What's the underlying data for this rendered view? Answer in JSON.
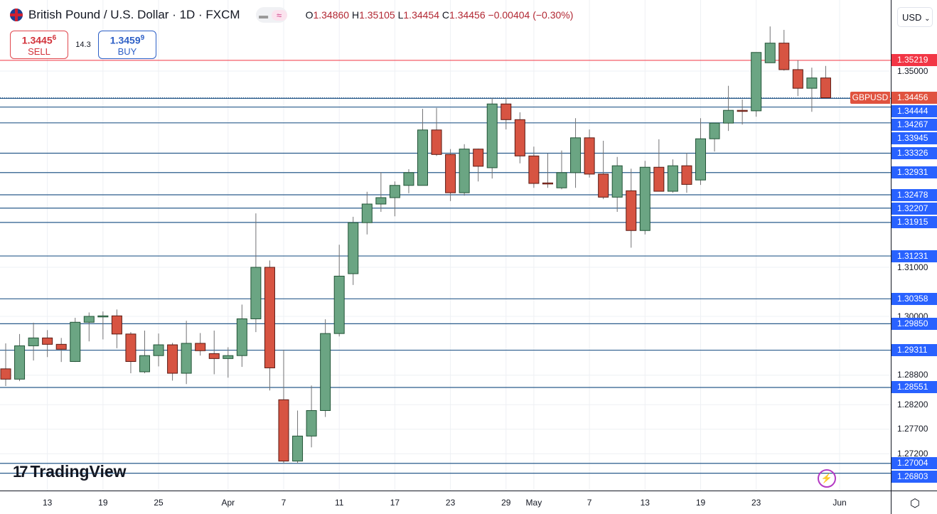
{
  "header": {
    "title": "British Pound / U.S. Dollar · 1D · FXCM",
    "ohlc": {
      "o_label": "O",
      "o": "1.34860",
      "h_label": "H",
      "h": "1.35105",
      "l_label": "L",
      "l": "1.34454",
      "c_label": "C",
      "c": "1.34456",
      "change": "−0.00404 (−0.30%)"
    }
  },
  "trade": {
    "sell_price": "1.3445",
    "sell_pip": "6",
    "sell_label": "SELL",
    "spread": "14.3",
    "buy_price": "1.3459",
    "buy_pip": "9",
    "buy_label": "BUY"
  },
  "currency": "USD",
  "symbol_tag": "GBPUSD",
  "logo_text": "TradingView",
  "icons": {
    "flag": "uk-us-flag-icon",
    "settings": "settings-icon",
    "lightning": "lightning-icon"
  },
  "colors": {
    "up": "#6ba583",
    "down": "#d75442",
    "level_line": "#2a5c8c",
    "resistance_line": "#f23645",
    "level_label": "#2962ff"
  },
  "chart_data": {
    "type": "candlestick",
    "symbol": "GBPUSD",
    "interval": "1D",
    "ylim": [
      1.2655,
      1.3645
    ],
    "y_tick_labels": [
      "1.35000",
      "1.31000",
      "1.30000",
      "1.28800",
      "1.28200",
      "1.27700",
      "1.27200"
    ],
    "x_tick_labels": [
      {
        "label": "13",
        "date": "Mar 13"
      },
      {
        "label": "19",
        "date": "Mar 19"
      },
      {
        "label": "25",
        "date": "Mar 25"
      },
      {
        "label": "Apr",
        "date": "Apr 1"
      },
      {
        "label": "7",
        "date": "Apr 7"
      },
      {
        "label": "11",
        "date": "Apr 11"
      },
      {
        "label": "17",
        "date": "Apr 17"
      },
      {
        "label": "23",
        "date": "Apr 23"
      },
      {
        "label": "29",
        "date": "Apr 29"
      },
      {
        "label": "May",
        "date": "May 1"
      },
      {
        "label": "7",
        "date": "May 7"
      },
      {
        "label": "13",
        "date": "May 13"
      },
      {
        "label": "19",
        "date": "May 19"
      },
      {
        "label": "23",
        "date": "May 23"
      },
      {
        "label": "Jun",
        "date": "Jun 2"
      }
    ],
    "current_price": "1.34456",
    "resistance_level": "1.35219",
    "levels": [
      "1.34444",
      "1.34267",
      "1.33945",
      "1.33326",
      "1.32931",
      "1.32478",
      "1.32207",
      "1.31915",
      "1.31231",
      "1.30358",
      "1.29850",
      "1.29311",
      "1.28551",
      "1.27004",
      "1.26803"
    ],
    "columns": [
      "date",
      "open",
      "high",
      "low",
      "close"
    ],
    "candles": [
      [
        "Mar 10",
        1.2893,
        1.2945,
        1.2858,
        1.2872
      ],
      [
        "Mar 11",
        1.2872,
        1.2964,
        1.2868,
        1.294
      ],
      [
        "Mar 12",
        1.294,
        1.2987,
        1.291,
        1.2956
      ],
      [
        "Mar 13",
        1.2956,
        1.2972,
        1.2917,
        1.2943
      ],
      [
        "Mar 14",
        1.2943,
        1.2956,
        1.2907,
        1.2933
      ],
      [
        "Mar 17",
        1.2908,
        1.2997,
        1.2907,
        1.2988
      ],
      [
        "Mar 18",
        1.2988,
        1.3008,
        1.2949,
        1.3
      ],
      [
        "Mar 19",
        1.3,
        1.301,
        1.2953,
        1.3001
      ],
      [
        "Mar 20",
        1.3001,
        1.3014,
        1.2935,
        1.2964
      ],
      [
        "Mar 21",
        1.2964,
        1.2968,
        1.2884,
        1.2908
      ],
      [
        "Mar 24",
        1.2887,
        1.2971,
        1.2884,
        1.292
      ],
      [
        "Mar 25",
        1.292,
        1.2965,
        1.2898,
        1.2942
      ],
      [
        "Mar 26",
        1.2942,
        1.2946,
        1.2869,
        1.2884
      ],
      [
        "Mar 27",
        1.2884,
        1.2991,
        1.2862,
        1.2945
      ],
      [
        "Mar 28",
        1.2945,
        1.2966,
        1.292,
        1.293
      ],
      [
        "Mar 31",
        1.2924,
        1.2971,
        1.2882,
        1.2914
      ],
      [
        "Apr 1",
        1.2914,
        1.2937,
        1.2875,
        1.292
      ],
      [
        "Apr 2",
        1.292,
        1.3024,
        1.2897,
        1.2995
      ],
      [
        "Apr 3",
        1.2995,
        1.321,
        1.2968,
        1.31
      ],
      [
        "Apr 4",
        1.31,
        1.3114,
        1.2849,
        1.2895
      ],
      [
        "Apr 7",
        1.283,
        1.2932,
        1.27,
        1.2705
      ],
      [
        "Apr 8",
        1.2705,
        1.2808,
        1.27,
        1.2756
      ],
      [
        "Apr 9",
        1.2756,
        1.2859,
        1.2733,
        1.2808
      ],
      [
        "Apr 10",
        1.2808,
        1.2994,
        1.2795,
        1.2965
      ],
      [
        "Apr 11",
        1.2965,
        1.3146,
        1.2959,
        1.3082
      ],
      [
        "Apr 14",
        1.3087,
        1.3203,
        1.3064,
        1.3191
      ],
      [
        "Apr 15",
        1.3191,
        1.3254,
        1.3167,
        1.3229
      ],
      [
        "Apr 16",
        1.3229,
        1.3294,
        1.3213,
        1.3242
      ],
      [
        "Apr 17",
        1.3242,
        1.3275,
        1.3204,
        1.3267
      ],
      [
        "Apr 18",
        1.3267,
        1.33,
        1.3251,
        1.3293
      ],
      [
        "Apr 21",
        1.3267,
        1.3423,
        1.3267,
        1.338
      ],
      [
        "Apr 22",
        1.338,
        1.3425,
        1.3327,
        1.333
      ],
      [
        "Apr 23",
        1.333,
        1.3341,
        1.3235,
        1.3252
      ],
      [
        "Apr 24",
        1.3252,
        1.3351,
        1.3246,
        1.3341
      ],
      [
        "Apr 25",
        1.3341,
        1.3342,
        1.3275,
        1.3306
      ],
      [
        "Apr 28",
        1.3303,
        1.3445,
        1.3281,
        1.3433
      ],
      [
        "Apr 29",
        1.3433,
        1.3445,
        1.3381,
        1.3401
      ],
      [
        "Apr 30",
        1.3401,
        1.3416,
        1.3312,
        1.3327
      ],
      [
        "May 1",
        1.3327,
        1.3346,
        1.3262,
        1.3271
      ],
      [
        "May 2",
        1.3272,
        1.3332,
        1.3262,
        1.3271
      ],
      [
        "May 5",
        1.3262,
        1.3338,
        1.3259,
        1.3293
      ],
      [
        "May 6",
        1.3293,
        1.3404,
        1.3262,
        1.3364
      ],
      [
        "May 7",
        1.3364,
        1.3381,
        1.3283,
        1.329
      ],
      [
        "May 8",
        1.329,
        1.3358,
        1.3239,
        1.3243
      ],
      [
        "May 9",
        1.3243,
        1.3325,
        1.3213,
        1.3307
      ],
      [
        "May 12",
        1.3256,
        1.3301,
        1.314,
        1.3175
      ],
      [
        "May 13",
        1.3175,
        1.3317,
        1.3167,
        1.3304
      ],
      [
        "May 14",
        1.3304,
        1.3361,
        1.3255,
        1.3255
      ],
      [
        "May 15",
        1.3255,
        1.332,
        1.3252,
        1.3307
      ],
      [
        "May 16",
        1.3307,
        1.3333,
        1.3252,
        1.3269
      ],
      [
        "May 19",
        1.3278,
        1.3404,
        1.3268,
        1.3362
      ],
      [
        "May 20",
        1.3362,
        1.3394,
        1.3336,
        1.3394
      ],
      [
        "May 21",
        1.3394,
        1.347,
        1.3378,
        1.342
      ],
      [
        "May 22",
        1.342,
        1.3442,
        1.3391,
        1.3419
      ],
      [
        "May 23",
        1.3419,
        1.3538,
        1.3407,
        1.3538
      ],
      [
        "May 26",
        1.3517,
        1.3591,
        1.3517,
        1.3557
      ],
      [
        "May 27",
        1.3557,
        1.3584,
        1.3501,
        1.3503
      ],
      [
        "May 28",
        1.3503,
        1.3522,
        1.3449,
        1.3465
      ],
      [
        "May 29",
        1.3465,
        1.3507,
        1.3417,
        1.3486
      ],
      [
        "May 30",
        1.3486,
        1.35105,
        1.34454,
        1.34456
      ]
    ]
  }
}
